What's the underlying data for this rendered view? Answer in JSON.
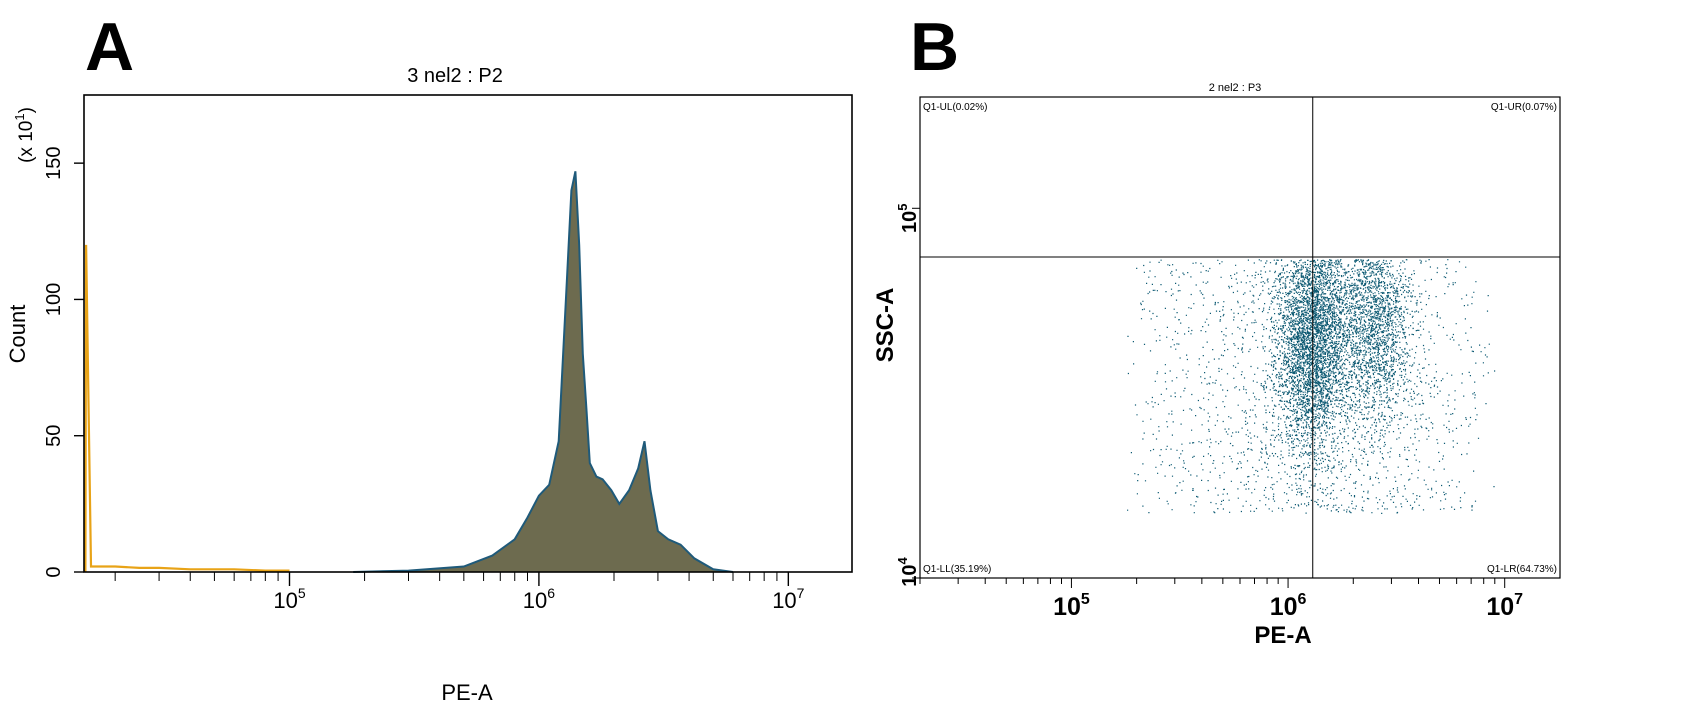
{
  "chart_data": [
    {
      "panel_label": "A",
      "type": "area",
      "title": "3 nel2 : P2",
      "xlabel": "PE-A",
      "ylabel": "Count",
      "y_multiplier_label": "(x 10",
      "y_multiplier_exp": "1",
      "x_scale": "log",
      "xlim": [
        15000,
        18000000
      ],
      "ylim": [
        0,
        175
      ],
      "x_ticks": [
        {
          "base": "10",
          "exp": "5",
          "value": 100000
        },
        {
          "base": "10",
          "exp": "6",
          "value": 1000000
        },
        {
          "base": "10",
          "exp": "7",
          "value": 10000000
        }
      ],
      "y_ticks": [
        0,
        50,
        100,
        150
      ],
      "series": [
        {
          "color": "#e8a317",
          "x": [
            15200,
            15300,
            16000,
            20000,
            25000,
            30000,
            40000,
            60000,
            80000,
            100000
          ],
          "y": [
            0,
            120,
            2,
            2,
            1.5,
            1.5,
            1,
            1,
            0.5,
            0.5
          ]
        },
        {
          "color": "#6d6b4f",
          "stroke": "#1f5a7a",
          "x": [
            180000,
            300000,
            500000,
            650000,
            800000,
            900000,
            1000000,
            1100000,
            1200000,
            1300000,
            1350000,
            1400000,
            1450000,
            1500000,
            1550000,
            1600000,
            1700000,
            1800000,
            1950000,
            2100000,
            2300000,
            2500000,
            2650000,
            2800000,
            3000000,
            3300000,
            3700000,
            4200000,
            5000000,
            6000000
          ],
          "y": [
            0,
            0.5,
            2,
            6,
            12,
            20,
            28,
            32,
            48,
            110,
            140,
            147,
            120,
            80,
            60,
            40,
            35,
            34,
            30,
            25,
            30,
            38,
            48,
            30,
            15,
            12,
            10,
            5,
            1,
            0
          ]
        }
      ]
    },
    {
      "panel_label": "B",
      "type": "scatter",
      "title": "2 nel2 : P3",
      "xlabel": "PE-A",
      "ylabel": "SSC-A",
      "x_scale": "log",
      "y_scale": "log",
      "xlim": [
        20000,
        18000000
      ],
      "ylim": [
        10000,
        200000
      ],
      "x_ticks": [
        {
          "base": "10",
          "exp": "5",
          "value": 100000
        },
        {
          "base": "10",
          "exp": "6",
          "value": 1000000
        },
        {
          "base": "10",
          "exp": "7",
          "value": 10000000
        }
      ],
      "y_ticks": [
        {
          "base": "10",
          "exp": "4",
          "value": 10000
        },
        {
          "base": "10",
          "exp": "5",
          "value": 100000
        }
      ],
      "gate": {
        "x": 1300000
      },
      "quadrants": {
        "ul": "Q1-UL(0.02%)",
        "ur": "Q1-UR(0.07%)",
        "ll": "Q1-LL(35.19%)",
        "lr": "Q1-LR(64.73%)"
      },
      "point_color": "#0d5a73",
      "populations": [
        {
          "x_range": [
            180000,
            9000000
          ],
          "y_range": [
            15000,
            80000
          ],
          "weight": 0.32
        },
        {
          "center_x": 1300000,
          "center_y": 45000,
          "spread_x": 0.12,
          "spread_y": 0.22,
          "weight": 0.45
        },
        {
          "center_x": 2500000,
          "center_y": 50000,
          "spread_x": 0.13,
          "spread_y": 0.2,
          "weight": 0.23
        }
      ]
    }
  ]
}
